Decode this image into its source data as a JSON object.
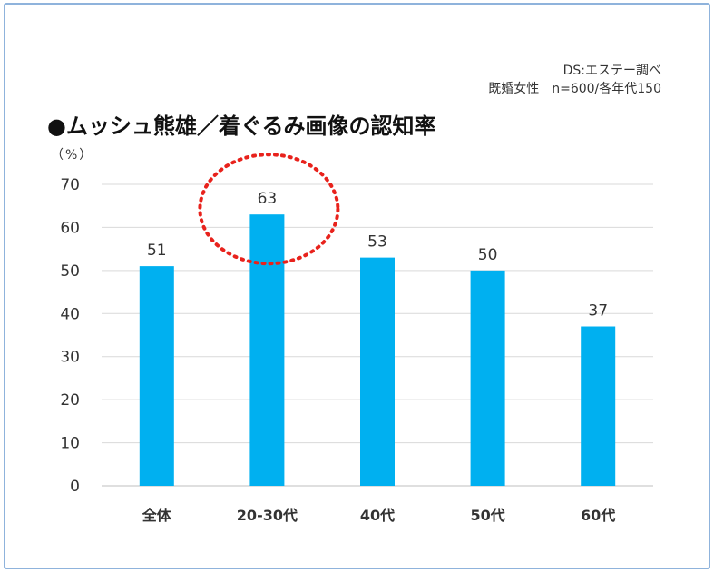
{
  "source": {
    "line1": "DS:エステー調べ",
    "line2": "既婚女性　n=600/各年代150"
  },
  "chart_data": {
    "type": "bar",
    "title": "●ムッシュ熊雄／着ぐるみ画像の認知率",
    "ylabel": "（%）",
    "xlabel": "",
    "categories": [
      "全体",
      "20-30代",
      "40代",
      "50代",
      "60代"
    ],
    "values": [
      51,
      63,
      53,
      50,
      37
    ],
    "ylim": [
      0,
      70
    ],
    "yticks": [
      0,
      10,
      20,
      30,
      40,
      50,
      60,
      70
    ],
    "grid": true,
    "bar_color": "#00b0f0",
    "highlight": {
      "category": "20-30代",
      "shape": "dotted-ellipse",
      "color": "#e8221c"
    }
  }
}
